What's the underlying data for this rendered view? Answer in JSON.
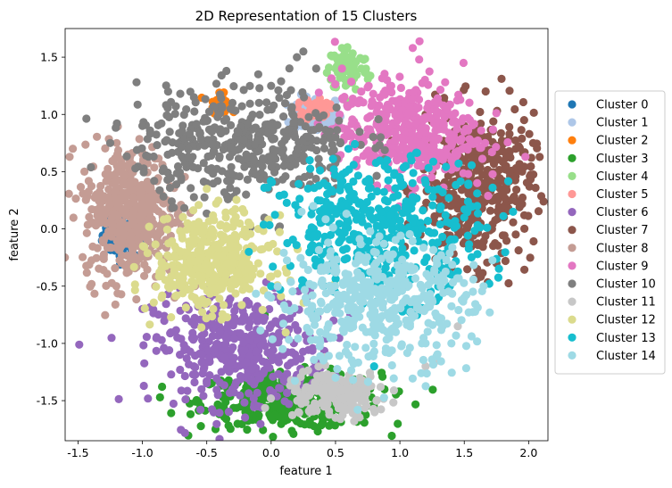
{
  "chart_data": {
    "type": "scatter",
    "title": "2D Representation of 15 Clusters",
    "xlabel": "feature 1",
    "ylabel": "feature 2",
    "xlim": [
      -1.6,
      2.15
    ],
    "ylim": [
      -1.85,
      1.75
    ],
    "xticks": [
      "-1.5",
      "-1.0",
      "-0.5",
      "0.0",
      "0.5",
      "1.0",
      "1.5",
      "2.0"
    ],
    "yticks": [
      "-1.5",
      "-1.0",
      "-0.5",
      "0.0",
      "0.5",
      "1.0",
      "1.5"
    ],
    "grid": false,
    "legend_position": "right",
    "series": [
      {
        "name": "Cluster 0",
        "color": "#1f77b4",
        "center": [
          -1.15,
          -0.05
        ],
        "spread": [
          0.08,
          0.1
        ],
        "points": [
          [
            -1.25,
            -0.08
          ],
          [
            -1.2,
            0.0
          ],
          [
            -1.15,
            -0.1
          ],
          [
            -1.1,
            0.05
          ],
          [
            -1.28,
            -0.02
          ],
          [
            -1.18,
            0.1
          ],
          [
            -1.12,
            -0.15
          ]
        ]
      },
      {
        "name": "Cluster 1",
        "color": "#aec7e8",
        "center": [
          0.35,
          1.0
        ],
        "spread": [
          0.1,
          0.08
        ],
        "points": [
          [
            0.3,
            1.05
          ],
          [
            0.4,
            0.98
          ],
          [
            0.35,
            1.1
          ]
        ]
      },
      {
        "name": "Cluster 2",
        "color": "#ff7f0e",
        "center": [
          -0.4,
          1.1
        ],
        "spread": [
          0.04,
          0.04
        ],
        "points": [
          [
            -0.4,
            1.15
          ],
          [
            -0.38,
            1.1
          ],
          [
            0.0,
            0.9
          ]
        ]
      },
      {
        "name": "Cluster 3",
        "color": "#2ca02c",
        "center": [
          0.15,
          -1.5
        ],
        "spread": [
          0.35,
          0.12
        ],
        "points": [
          [
            -0.4,
            -1.55
          ],
          [
            -0.2,
            -1.6
          ],
          [
            0.0,
            -1.65
          ],
          [
            0.2,
            -1.68
          ],
          [
            0.4,
            -1.62
          ],
          [
            0.6,
            -1.55
          ],
          [
            -0.1,
            -1.5
          ],
          [
            0.3,
            -1.45
          ],
          [
            -0.3,
            -1.4
          ],
          [
            -0.1,
            -0.72
          ],
          [
            -0.05,
            -0.75
          ]
        ]
      },
      {
        "name": "Cluster 4",
        "color": "#98df8a",
        "center": [
          0.6,
          1.4
        ],
        "spread": [
          0.08,
          0.1
        ],
        "points": [
          [
            0.55,
            1.58
          ],
          [
            0.6,
            1.48
          ],
          [
            0.5,
            1.4
          ]
        ]
      },
      {
        "name": "Cluster 5",
        "color": "#ff9896",
        "center": [
          0.35,
          1.05
        ],
        "spread": [
          0.05,
          0.05
        ],
        "points": [
          [
            0.35,
            1.05
          ]
        ]
      },
      {
        "name": "Cluster 6",
        "color": "#9467bd",
        "center": [
          -0.25,
          -1.05
        ],
        "spread": [
          0.33,
          0.25
        ],
        "points": [
          [
            -0.6,
            -1.2
          ],
          [
            -0.3,
            -1.4
          ],
          [
            0.0,
            -1.1
          ],
          [
            -0.4,
            -0.9
          ],
          [
            -0.75,
            -0.9
          ],
          [
            -1.0,
            -0.7
          ],
          [
            -0.1,
            -1.55
          ],
          [
            -0.5,
            -1.35
          ]
        ]
      },
      {
        "name": "Cluster 7",
        "color": "#8c564b",
        "center": [
          1.6,
          0.35
        ],
        "spread": [
          0.22,
          0.33
        ],
        "points": [
          [
            1.9,
            0.7
          ],
          [
            1.95,
            0.5
          ],
          [
            1.8,
            0.3
          ],
          [
            1.7,
            0.0
          ],
          [
            1.75,
            -0.3
          ],
          [
            1.6,
            0.6
          ],
          [
            1.5,
            0.9
          ],
          [
            1.2,
            1.0
          ],
          [
            1.0,
            1.1
          ],
          [
            1.82,
            -0.28
          ],
          [
            1.6,
            -0.35
          ]
        ]
      },
      {
        "name": "Cluster 8",
        "color": "#c49c94",
        "center": [
          -1.1,
          0.15
        ],
        "spread": [
          0.18,
          0.3
        ],
        "points": [
          [
            -1.45,
            0.5
          ],
          [
            -1.4,
            0.05
          ],
          [
            -1.3,
            -0.1
          ],
          [
            -1.15,
            0.4
          ],
          [
            -1.05,
            -0.3
          ],
          [
            -0.9,
            -0.5
          ],
          [
            -1.2,
            0.75
          ],
          [
            -0.75,
            -0.6
          ]
        ]
      },
      {
        "name": "Cluster 9",
        "color": "#e377c2",
        "center": [
          1.05,
          0.85
        ],
        "spread": [
          0.28,
          0.22
        ],
        "points": [
          [
            1.1,
            1.58
          ],
          [
            1.15,
            1.48
          ],
          [
            0.55,
            1.4
          ],
          [
            0.9,
            1.3
          ],
          [
            1.3,
            1.1
          ],
          [
            1.4,
            0.6
          ],
          [
            1.6,
            0.4
          ],
          [
            0.7,
            1.2
          ],
          [
            1.5,
            0.85
          ]
        ]
      },
      {
        "name": "Cluster 10",
        "color": "#7f7f7f",
        "center": [
          -0.2,
          0.75
        ],
        "spread": [
          0.42,
          0.24
        ],
        "points": [
          [
            -1.0,
            0.9
          ],
          [
            -0.8,
            1.2
          ],
          [
            -0.6,
            1.15
          ],
          [
            -0.3,
            1.1
          ],
          [
            0.0,
            1.25
          ],
          [
            0.2,
            1.5
          ],
          [
            0.25,
            1.55
          ],
          [
            -0.1,
            1.35
          ],
          [
            0.35,
            1.4
          ],
          [
            0.5,
            0.8
          ],
          [
            -0.5,
            0.4
          ],
          [
            0.1,
            0.55
          ],
          [
            -1.25,
            0.75
          ],
          [
            0.85,
            0.8
          ]
        ]
      },
      {
        "name": "Cluster 11",
        "color": "#c7c7c7",
        "center": [
          0.5,
          -1.45
        ],
        "spread": [
          0.2,
          0.1
        ],
        "points": [
          [
            0.3,
            -1.6
          ],
          [
            0.5,
            -1.65
          ],
          [
            0.7,
            -1.5
          ],
          [
            0.85,
            -1.38
          ],
          [
            1.3,
            -1.15
          ],
          [
            1.2,
            -1.2
          ],
          [
            1.45,
            -0.85
          ]
        ]
      },
      {
        "name": "Cluster 12",
        "color": "#dbdb8d",
        "center": [
          -0.45,
          -0.3
        ],
        "spread": [
          0.22,
          0.2
        ],
        "points": [
          [
            -0.85,
            -0.3
          ],
          [
            -0.7,
            -0.5
          ],
          [
            -0.45,
            -0.7
          ],
          [
            -0.2,
            -0.5
          ],
          [
            -0.1,
            0.0
          ],
          [
            -0.3,
            0.15
          ],
          [
            -0.65,
            0.05
          ],
          [
            -0.85,
            -0.6
          ],
          [
            -0.5,
            0.35
          ]
        ]
      },
      {
        "name": "Cluster 13",
        "color": "#17becf",
        "center": [
          0.85,
          0.0
        ],
        "spread": [
          0.4,
          0.3
        ],
        "points": [
          [
            0.1,
            0.3
          ],
          [
            0.3,
            0.6
          ],
          [
            0.6,
            0.7
          ],
          [
            0.9,
            0.6
          ],
          [
            1.2,
            0.4
          ],
          [
            1.5,
            0.1
          ],
          [
            1.4,
            -0.4
          ],
          [
            1.1,
            -0.7
          ],
          [
            0.0,
            -0.5
          ],
          [
            0.8,
            -1.2
          ],
          [
            1.6,
            0.2
          ]
        ]
      },
      {
        "name": "Cluster 14",
        "color": "#9edae5",
        "center": [
          0.8,
          -0.65
        ],
        "spread": [
          0.38,
          0.28
        ],
        "points": [
          [
            0.0,
            -0.6
          ],
          [
            0.3,
            -0.9
          ],
          [
            0.6,
            -1.1
          ],
          [
            0.9,
            -0.9
          ],
          [
            1.2,
            -1.0
          ],
          [
            1.5,
            -0.6
          ],
          [
            1.65,
            -0.5
          ],
          [
            1.4,
            -1.0
          ],
          [
            0.8,
            -0.2
          ],
          [
            0.5,
            -1.3
          ]
        ]
      }
    ]
  }
}
